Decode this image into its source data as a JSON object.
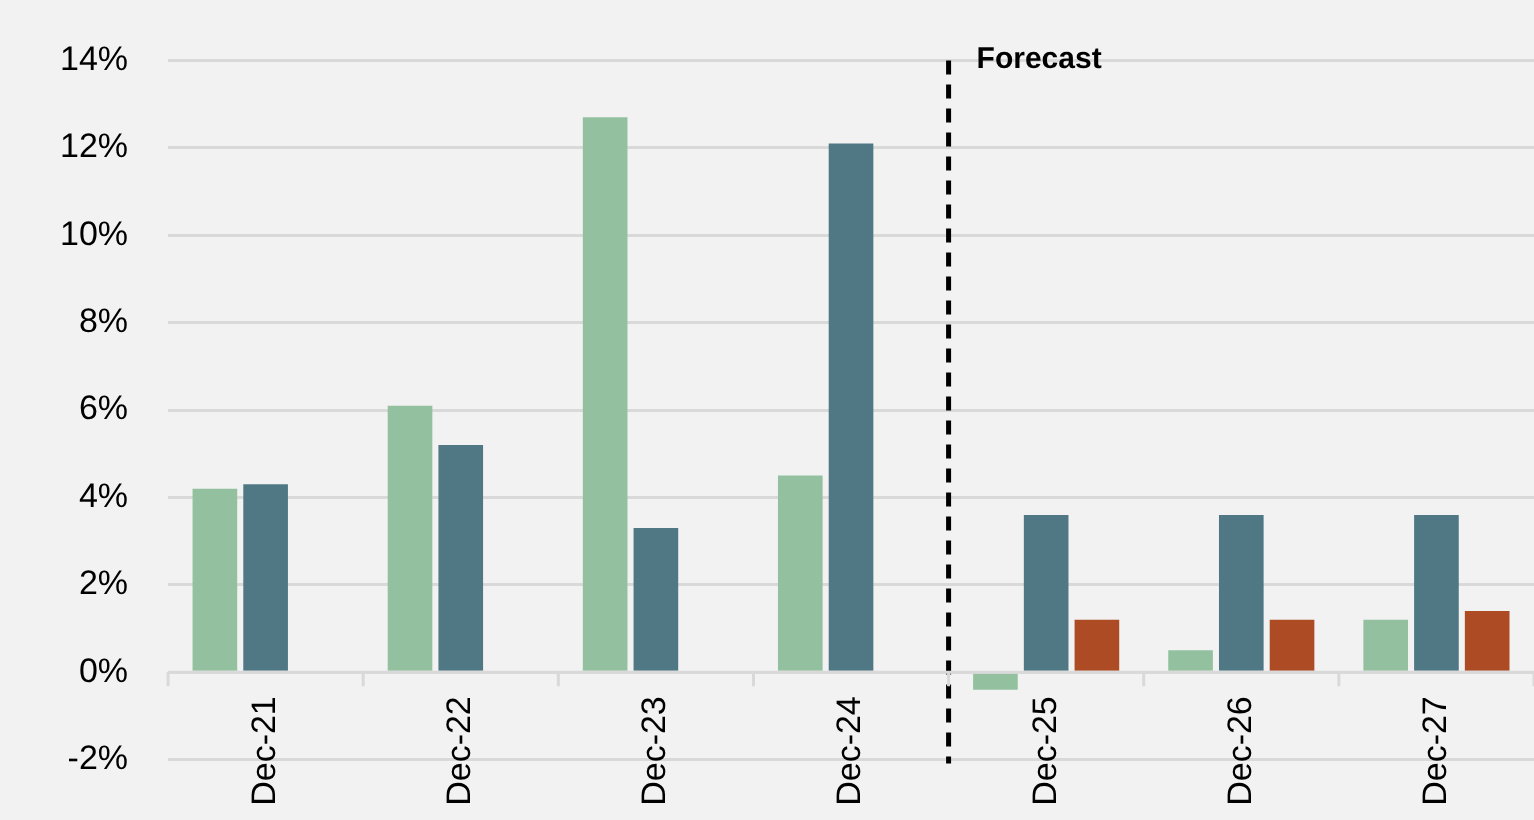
{
  "chart_data": {
    "type": "bar",
    "categories": [
      "Dec-21",
      "Dec-22",
      "Dec-23",
      "Dec-24",
      "Dec-25",
      "Dec-26",
      "Dec-27"
    ],
    "series": [
      {
        "color": "#93c1a0",
        "values": [
          4.2,
          6.1,
          12.7,
          4.5,
          -0.4,
          0.5,
          1.2
        ]
      },
      {
        "color": "#4f7884",
        "values": [
          4.3,
          5.2,
          3.3,
          12.1,
          3.6,
          3.6,
          3.6
        ]
      },
      {
        "color": "#ad4b24",
        "values": [
          null,
          null,
          null,
          null,
          1.2,
          1.2,
          1.4
        ]
      }
    ],
    "ylim": [
      -2,
      14
    ],
    "yticks": [
      {
        "value": -2,
        "label": "-2%"
      },
      {
        "value": 0,
        "label": "0%"
      },
      {
        "value": 2,
        "label": "2%"
      },
      {
        "value": 4,
        "label": "4%"
      },
      {
        "value": 6,
        "label": "6%"
      },
      {
        "value": 8,
        "label": "8%"
      },
      {
        "value": 10,
        "label": "10%"
      },
      {
        "value": 12,
        "label": "12%"
      },
      {
        "value": 14,
        "label": "14%"
      }
    ],
    "grid": "y",
    "ref_lines": [
      {
        "axis": "x",
        "value": "Dec-25",
        "label": "Forecast",
        "color": "#000000",
        "line_style": "dashed"
      }
    ]
  }
}
